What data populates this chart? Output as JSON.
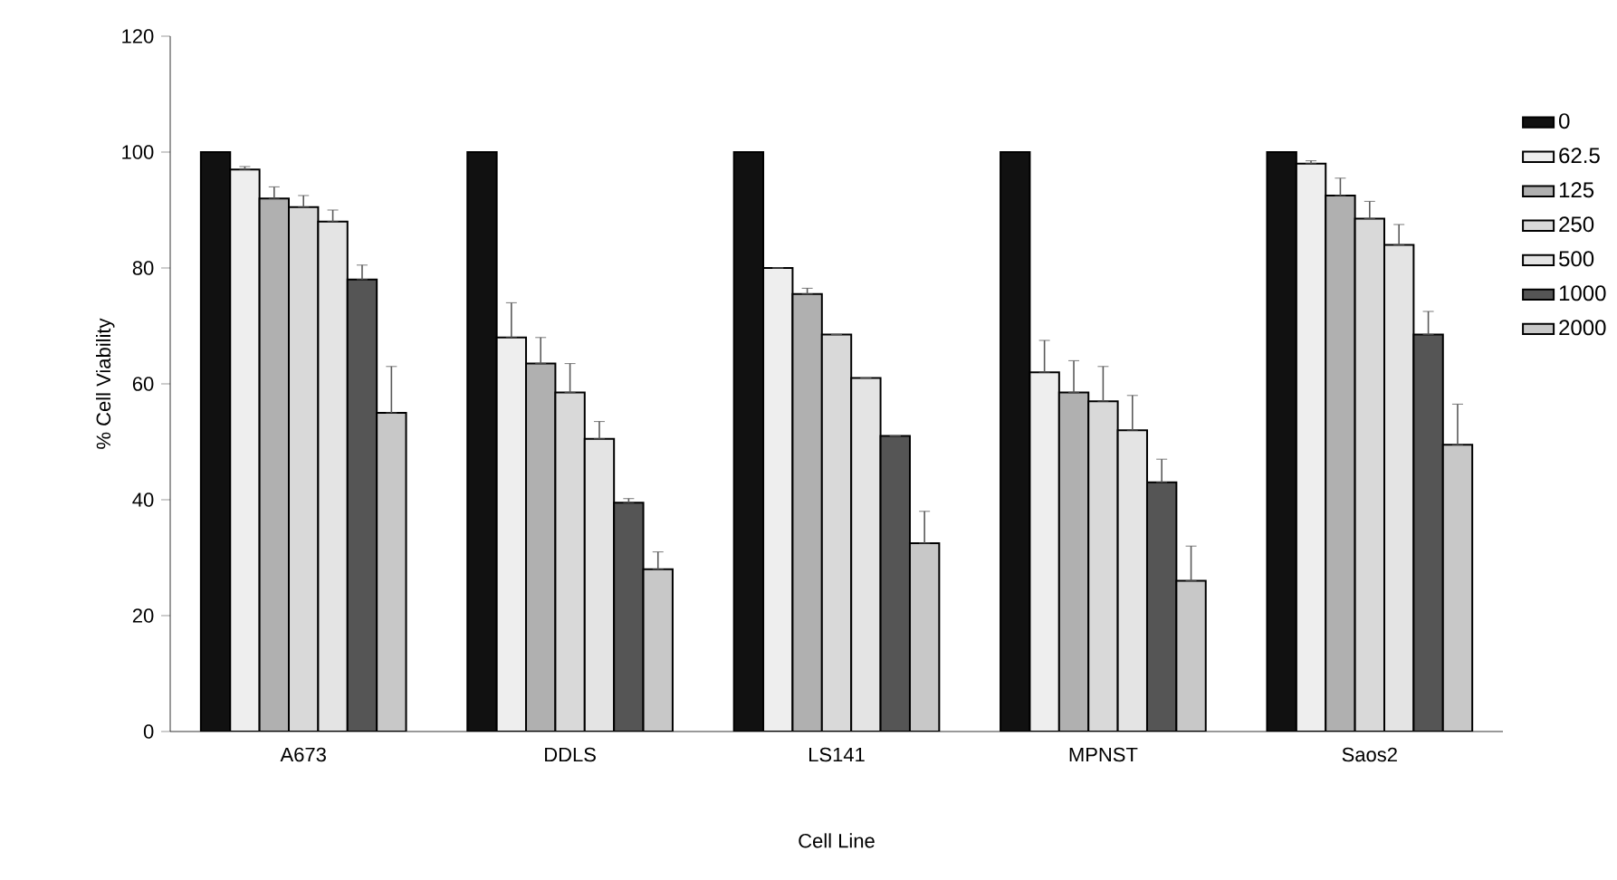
{
  "chart_data": {
    "type": "bar",
    "xlabel": "Cell Line",
    "ylabel": "% Cell Viability",
    "categories": [
      "A673",
      "DDLS",
      "LS141",
      "MPNST",
      "Saos2"
    ],
    "ylim": [
      0,
      120
    ],
    "yticks": [
      0,
      20,
      40,
      60,
      80,
      100,
      120
    ],
    "legend": "right",
    "series": [
      {
        "name": "0",
        "color": "#111111",
        "values": [
          100,
          100,
          100,
          100,
          100
        ]
      },
      {
        "name": "62.5",
        "color": "#eeeeee",
        "values": [
          97,
          68,
          80,
          62,
          98
        ],
        "errors": [
          [
            97,
            97.5
          ],
          [
            68,
            74
          ],
          [
            80,
            80
          ],
          [
            62,
            67.5
          ],
          [
            98,
            98.5
          ]
        ]
      },
      {
        "name": "125",
        "color": "#b0b0b0",
        "values": [
          92,
          63.5,
          75.5,
          58.5,
          92.5
        ],
        "errors": [
          [
            92,
            94
          ],
          [
            63.5,
            68
          ],
          [
            75.5,
            76.5
          ],
          [
            58.5,
            64
          ],
          [
            92.5,
            95.5
          ]
        ]
      },
      {
        "name": "250",
        "color": "#d9d9d9",
        "values": [
          90.5,
          58.5,
          68.5,
          57,
          88.5
        ],
        "errors": [
          [
            90.5,
            92.5
          ],
          [
            58.5,
            63.5
          ],
          [
            68.5,
            68.5
          ],
          [
            57,
            63
          ],
          [
            88.5,
            91.5
          ]
        ]
      },
      {
        "name": "500",
        "color": "#e4e4e4",
        "values": [
          88,
          50.5,
          61,
          52,
          84
        ],
        "errors": [
          [
            88,
            90
          ],
          [
            50.5,
            53.5
          ],
          [
            61,
            61
          ],
          [
            52,
            58
          ],
          [
            84,
            87.5
          ]
        ]
      },
      {
        "name": "1000",
        "color": "#555555",
        "values": [
          78,
          39.5,
          51,
          43,
          68.5
        ],
        "errors": [
          [
            78,
            80.5
          ],
          [
            39.5,
            40.2
          ],
          [
            51,
            51
          ],
          [
            43,
            47
          ],
          [
            68.5,
            72.5
          ]
        ]
      },
      {
        "name": "2000",
        "color": "#c8c8c8",
        "values": [
          55,
          28,
          32.5,
          26,
          49.5
        ],
        "errors": [
          [
            55,
            63
          ],
          [
            28,
            31
          ],
          [
            32.5,
            38
          ],
          [
            26,
            32
          ],
          [
            49.5,
            56.5
          ]
        ]
      }
    ]
  }
}
